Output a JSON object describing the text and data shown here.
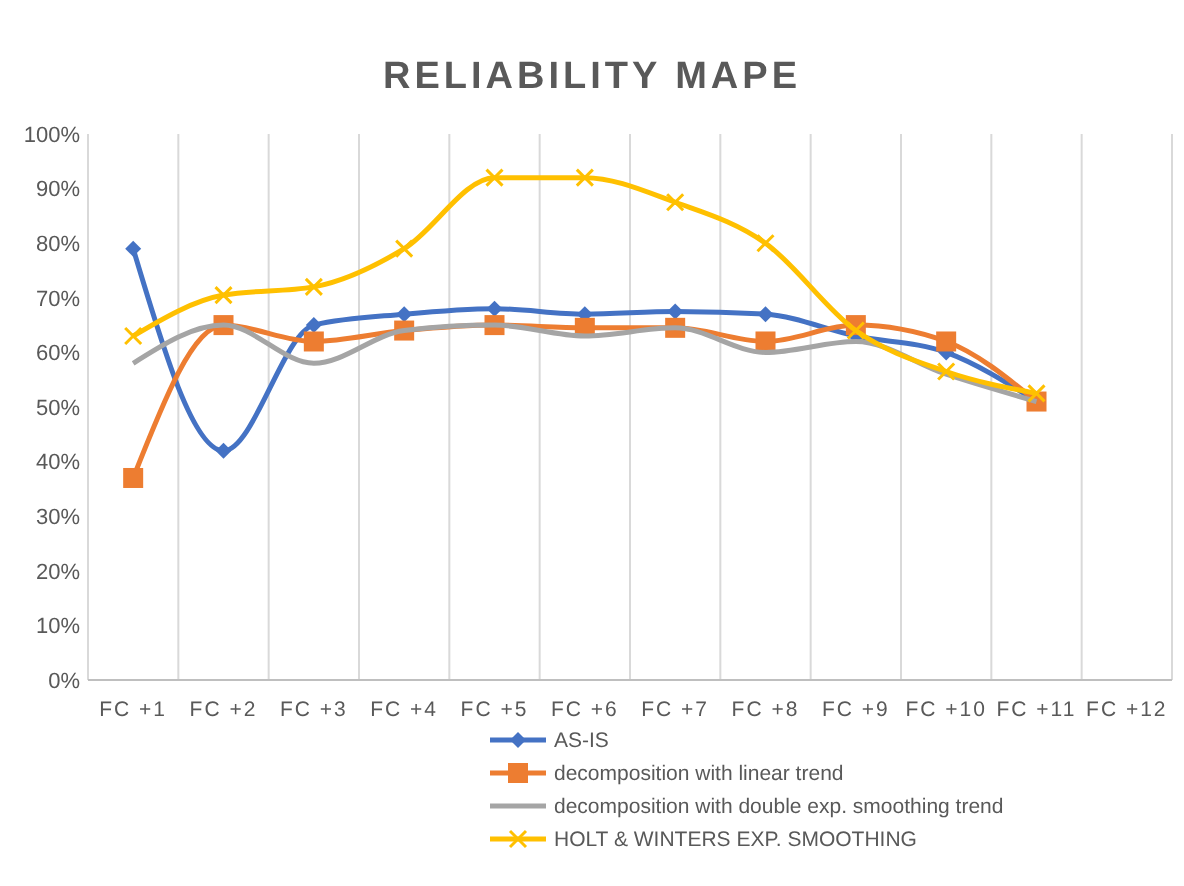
{
  "chart_data": {
    "type": "line",
    "title": "RELIABILITY  MAPE",
    "categories": [
      "FC +1",
      "FC +2",
      "FC +3",
      "FC +4",
      "FC +5",
      "FC +6",
      "FC +7",
      "FC +8",
      "FC +9",
      "FC +10",
      "FC +11",
      "FC +12"
    ],
    "series": [
      {
        "name": "AS-IS",
        "color": "#4472c4",
        "marker": "diamond",
        "values": [
          0.79,
          0.42,
          0.65,
          0.67,
          0.68,
          0.67,
          0.675,
          0.67,
          0.63,
          0.6,
          0.51,
          null
        ]
      },
      {
        "name": "decomposition with linear trend",
        "color": "#ed7d31",
        "marker": "square",
        "values": [
          0.37,
          0.65,
          0.62,
          0.64,
          0.65,
          0.645,
          0.645,
          0.62,
          0.65,
          0.62,
          0.51,
          null
        ]
      },
      {
        "name": "decomposition with double exp. smoothing trend",
        "color": "#a5a5a5",
        "marker": "none",
        "values": [
          0.58,
          0.65,
          0.58,
          0.64,
          0.65,
          0.63,
          0.645,
          0.6,
          0.62,
          0.56,
          0.51,
          null
        ]
      },
      {
        "name": "HOLT & WINTERS EXP. SMOOTHING",
        "color": "#ffc000",
        "marker": "cross",
        "values": [
          0.63,
          0.705,
          0.72,
          0.79,
          0.92,
          0.92,
          0.875,
          0.8,
          0.64,
          0.565,
          0.525,
          null
        ]
      }
    ],
    "ylim": [
      0,
      1
    ],
    "yticks": [
      {
        "value": 0,
        "label": "0%"
      },
      {
        "value": 0.1,
        "label": "10%"
      },
      {
        "value": 0.2,
        "label": "20%"
      },
      {
        "value": 0.3,
        "label": "30%"
      },
      {
        "value": 0.4,
        "label": "40%"
      },
      {
        "value": 0.5,
        "label": "50%"
      },
      {
        "value": 0.6,
        "label": "60%"
      },
      {
        "value": 0.7,
        "label": "70%"
      },
      {
        "value": 0.8,
        "label": "80%"
      },
      {
        "value": 0.9,
        "label": "90%"
      },
      {
        "value": 1,
        "label": "100%"
      }
    ],
    "grid": "x",
    "legend": "bottom",
    "line_style": "solid"
  }
}
